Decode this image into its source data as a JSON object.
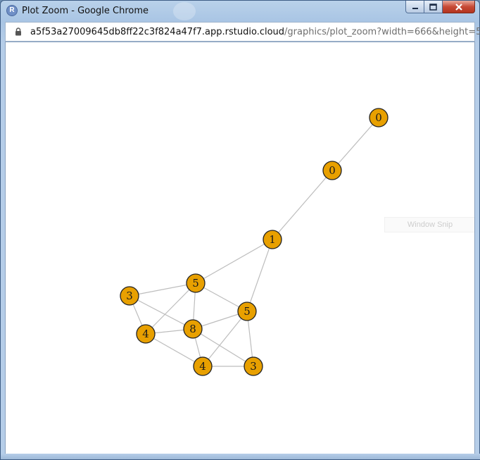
{
  "window": {
    "title": "Plot Zoom - Google Chrome",
    "app_icon_letter": "R"
  },
  "address_bar": {
    "host": "a5f53a27009645db8ff22c3f824a47f7.app.rstudio.cloud",
    "path": "/graphics/plot_zoom?width=666&height=5..."
  },
  "overlay": {
    "window_snip_label": "Window Snip"
  },
  "colors": {
    "node_fill": "#e8a000",
    "node_stroke": "#222222",
    "edge": "#bdbdbd"
  },
  "graph": {
    "nodes": [
      {
        "id": "n1",
        "label": "0"
      },
      {
        "id": "n2",
        "label": "0"
      },
      {
        "id": "n3",
        "label": "1"
      },
      {
        "id": "n4",
        "label": "5"
      },
      {
        "id": "n5",
        "label": "3"
      },
      {
        "id": "n6",
        "label": "5"
      },
      {
        "id": "n7",
        "label": "4"
      },
      {
        "id": "n8",
        "label": "8"
      },
      {
        "id": "n9",
        "label": "4"
      },
      {
        "id": "n10",
        "label": "3"
      }
    ],
    "edges": [
      [
        "n1",
        "n2"
      ],
      [
        "n2",
        "n3"
      ],
      [
        "n3",
        "n4"
      ],
      [
        "n3",
        "n6"
      ],
      [
        "n4",
        "n5"
      ],
      [
        "n4",
        "n6"
      ],
      [
        "n4",
        "n7"
      ],
      [
        "n4",
        "n8"
      ],
      [
        "n5",
        "n7"
      ],
      [
        "n5",
        "n8"
      ],
      [
        "n6",
        "n8"
      ],
      [
        "n6",
        "n9"
      ],
      [
        "n6",
        "n10"
      ],
      [
        "n7",
        "n8"
      ],
      [
        "n7",
        "n9"
      ],
      [
        "n8",
        "n9"
      ],
      [
        "n8",
        "n10"
      ],
      [
        "n9",
        "n10"
      ]
    ]
  }
}
